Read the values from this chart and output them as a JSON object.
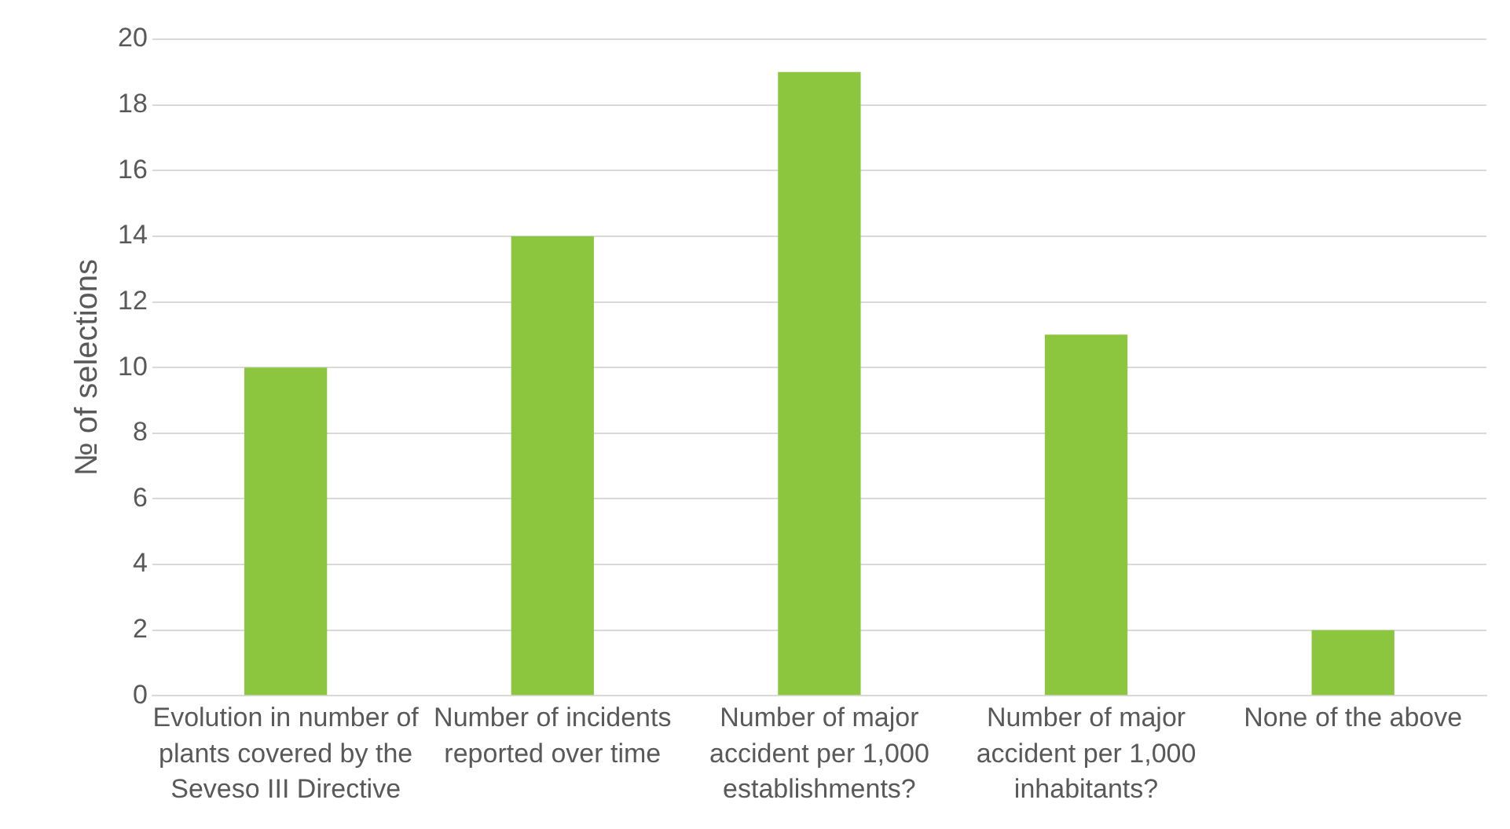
{
  "chart_data": {
    "type": "bar",
    "ylabel": "№ of selections",
    "categories": [
      "Evolution in number of plants covered by the Seveso III Directive",
      "Number of incidents reported over time",
      "Number of major accident per 1,000 establishments?",
      "Number of major accident per 1,000 inhabitants?",
      "None of the above"
    ],
    "values": [
      10,
      14,
      19,
      11,
      2
    ],
    "color": "#8cc63f",
    "ylim": [
      0,
      20
    ],
    "yticks": [
      0,
      2,
      4,
      6,
      8,
      10,
      12,
      14,
      16,
      18,
      20
    ],
    "grid": "y"
  }
}
